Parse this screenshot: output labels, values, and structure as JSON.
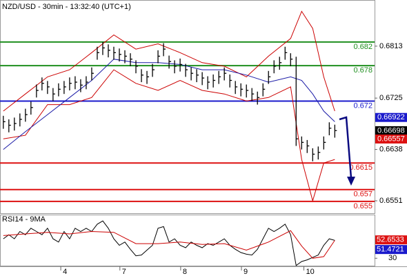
{
  "chart_data": [
    {
      "type": "ohlc",
      "title": "NZD/USD - 30min - 13:32:40 (UTC+1)",
      "color": "#000000",
      "high": [
        0.6695,
        0.6689,
        0.6692,
        0.6699,
        0.6707,
        0.6719,
        0.6748,
        0.676,
        0.6754,
        0.6742,
        0.675,
        0.6754,
        0.676,
        0.6762,
        0.6757,
        0.6762,
        0.6777,
        0.6812,
        0.682,
        0.6816,
        0.6812,
        0.6809,
        0.6806,
        0.6801,
        0.6789,
        0.6774,
        0.6771,
        0.6783,
        0.6806,
        0.6818,
        0.6797,
        0.6789,
        0.6792,
        0.6783,
        0.6777,
        0.6774,
        0.6769,
        0.6762,
        0.6765,
        0.6771,
        0.6777,
        0.6765,
        0.6754,
        0.675,
        0.6748,
        0.6742,
        0.6736,
        0.675,
        0.6771,
        0.6789,
        0.6795,
        0.6812,
        0.6801,
        0.6795,
        0.666,
        0.6654,
        0.664,
        0.6643,
        0.666,
        0.6684,
        0.668
      ],
      "low": [
        0.6673,
        0.6667,
        0.667,
        0.6677,
        0.6685,
        0.6697,
        0.6726,
        0.6738,
        0.6732,
        0.672,
        0.6728,
        0.6732,
        0.6738,
        0.674,
        0.6735,
        0.674,
        0.6755,
        0.679,
        0.6798,
        0.6794,
        0.679,
        0.6787,
        0.6784,
        0.6779,
        0.6767,
        0.6752,
        0.6749,
        0.6761,
        0.6784,
        0.6796,
        0.6775,
        0.6767,
        0.677,
        0.6761,
        0.6755,
        0.6752,
        0.6747,
        0.674,
        0.6743,
        0.6749,
        0.6755,
        0.6743,
        0.6732,
        0.6728,
        0.6726,
        0.672,
        0.6714,
        0.6728,
        0.6749,
        0.6767,
        0.6773,
        0.679,
        0.6779,
        0.6644,
        0.6638,
        0.6632,
        0.6618,
        0.6621,
        0.6638,
        0.6662,
        0.6658
      ],
      "close": [
        0.6685,
        0.6679,
        0.6682,
        0.6689,
        0.6697,
        0.6709,
        0.6738,
        0.675,
        0.6744,
        0.6732,
        0.674,
        0.6744,
        0.675,
        0.6752,
        0.6747,
        0.6752,
        0.6767,
        0.6802,
        0.681,
        0.6806,
        0.6802,
        0.6799,
        0.6796,
        0.6791,
        0.6779,
        0.6764,
        0.6761,
        0.6773,
        0.6796,
        0.6808,
        0.6787,
        0.6779,
        0.6782,
        0.6773,
        0.6767,
        0.6764,
        0.6759,
        0.6752,
        0.6755,
        0.6761,
        0.6767,
        0.6755,
        0.6744,
        0.674,
        0.6738,
        0.6732,
        0.6726,
        0.674,
        0.6761,
        0.6779,
        0.6785,
        0.6802,
        0.6791,
        0.6656,
        0.665,
        0.6644,
        0.663,
        0.6633,
        0.665,
        0.6674,
        0.667
      ],
      "overlays": [
        {
          "color": "#cc0000",
          "x": [
            0,
            4,
            8,
            12,
            16,
            20,
            24,
            28,
            32,
            36,
            40,
            44,
            48,
            52,
            54,
            56,
            58,
            60
          ],
          "values": [
            0.6703,
            0.6732,
            0.6761,
            0.6773,
            0.6802,
            0.6832,
            0.6808,
            0.6817,
            0.6802,
            0.6785,
            0.6779,
            0.6761,
            0.6796,
            0.6826,
            0.6872,
            0.6843,
            0.6761,
            0.6703
          ]
        },
        {
          "color": "#cc0000",
          "x": [
            0,
            4,
            8,
            12,
            16,
            20,
            24,
            28,
            32,
            36,
            40,
            44,
            48,
            52,
            54,
            56,
            58,
            60
          ],
          "values": [
            0.6656,
            0.6662,
            0.6714,
            0.6714,
            0.6726,
            0.6773,
            0.675,
            0.6738,
            0.6755,
            0.6738,
            0.6732,
            0.672,
            0.6726,
            0.6744,
            0.6621,
            0.6551,
            0.6615,
            0.6621
          ]
        },
        {
          "color": "#1a1aa6",
          "x": [
            0,
            4,
            8,
            12,
            16,
            20,
            24,
            28,
            32,
            36,
            40,
            44,
            48,
            52,
            54,
            56,
            58,
            60
          ],
          "values": [
            0.6638,
            0.6668,
            0.6697,
            0.6726,
            0.6755,
            0.6791,
            0.6785,
            0.6785,
            0.6782,
            0.6773,
            0.6773,
            0.6764,
            0.6752,
            0.6761,
            0.6755,
            0.6732,
            0.6703,
            0.6685
          ]
        }
      ],
      "levels": [
        {
          "value": 0.682,
          "color": "#1f8f1f"
        },
        {
          "value": 0.678,
          "color": "#1f8f1f"
        },
        {
          "value": 0.672,
          "color": "#1a1acc"
        },
        {
          "value": 0.6615,
          "color": "#dd1111"
        },
        {
          "value": 0.657,
          "color": "#dd1111"
        },
        {
          "value": 0.655,
          "color": "#dd1111"
        }
      ],
      "price_markers": [
        {
          "value": 0.66922,
          "color": "#1a1acc"
        },
        {
          "value": 0.66698,
          "color": "#000000"
        },
        {
          "value": 0.66557,
          "color": "#dd1111"
        }
      ],
      "xlim": [
        -0.6,
        67.2
      ],
      "ylim": [
        0.653,
        0.689
      ],
      "yticks": [
        0.6813,
        0.6725,
        0.6638,
        0.6551
      ],
      "xticks": [
        {
          "value": 10.4,
          "label": "4"
        },
        {
          "value": 21.1,
          "label": "7"
        },
        {
          "value": 32.1,
          "label": "8"
        },
        {
          "value": 43.1,
          "label": "9"
        },
        {
          "value": 54.4,
          "label": "10"
        }
      ]
    },
    {
      "type": "line",
      "title": "RSI14 - 9MA",
      "series": [
        {
          "color": "#000000",
          "values": [
            54,
            59,
            54,
            63,
            59,
            67,
            63,
            59,
            67,
            54,
            50,
            63,
            54,
            67,
            63,
            67,
            63,
            72,
            76,
            67,
            54,
            46,
            50,
            41,
            33,
            34,
            40,
            46,
            67,
            69,
            50,
            54,
            46,
            43,
            50,
            46,
            43,
            48,
            46,
            50,
            54,
            46,
            41,
            37,
            35,
            34,
            41,
            54,
            67,
            63,
            67,
            72,
            59,
            21,
            26,
            28,
            31,
            34,
            46,
            54,
            52
          ]
        },
        {
          "color": "#cc0000",
          "x": [
            0,
            4,
            8,
            12,
            16,
            20,
            24,
            28,
            32,
            36,
            40,
            44,
            48,
            52,
            54,
            56,
            58,
            60
          ],
          "values": [
            58,
            60,
            62,
            60,
            63,
            62,
            48,
            48,
            50,
            47,
            48,
            40,
            50,
            64,
            45,
            30,
            32,
            52
          ]
        }
      ],
      "value_markers": [
        {
          "value": 52.6533,
          "color": "#dd1111"
        },
        {
          "value": 51.4721,
          "color": "#1a1acc"
        }
      ],
      "xlim": [
        -0.6,
        67.2
      ],
      "ylim": [
        20,
        83
      ],
      "yticks": [
        30
      ]
    }
  ]
}
